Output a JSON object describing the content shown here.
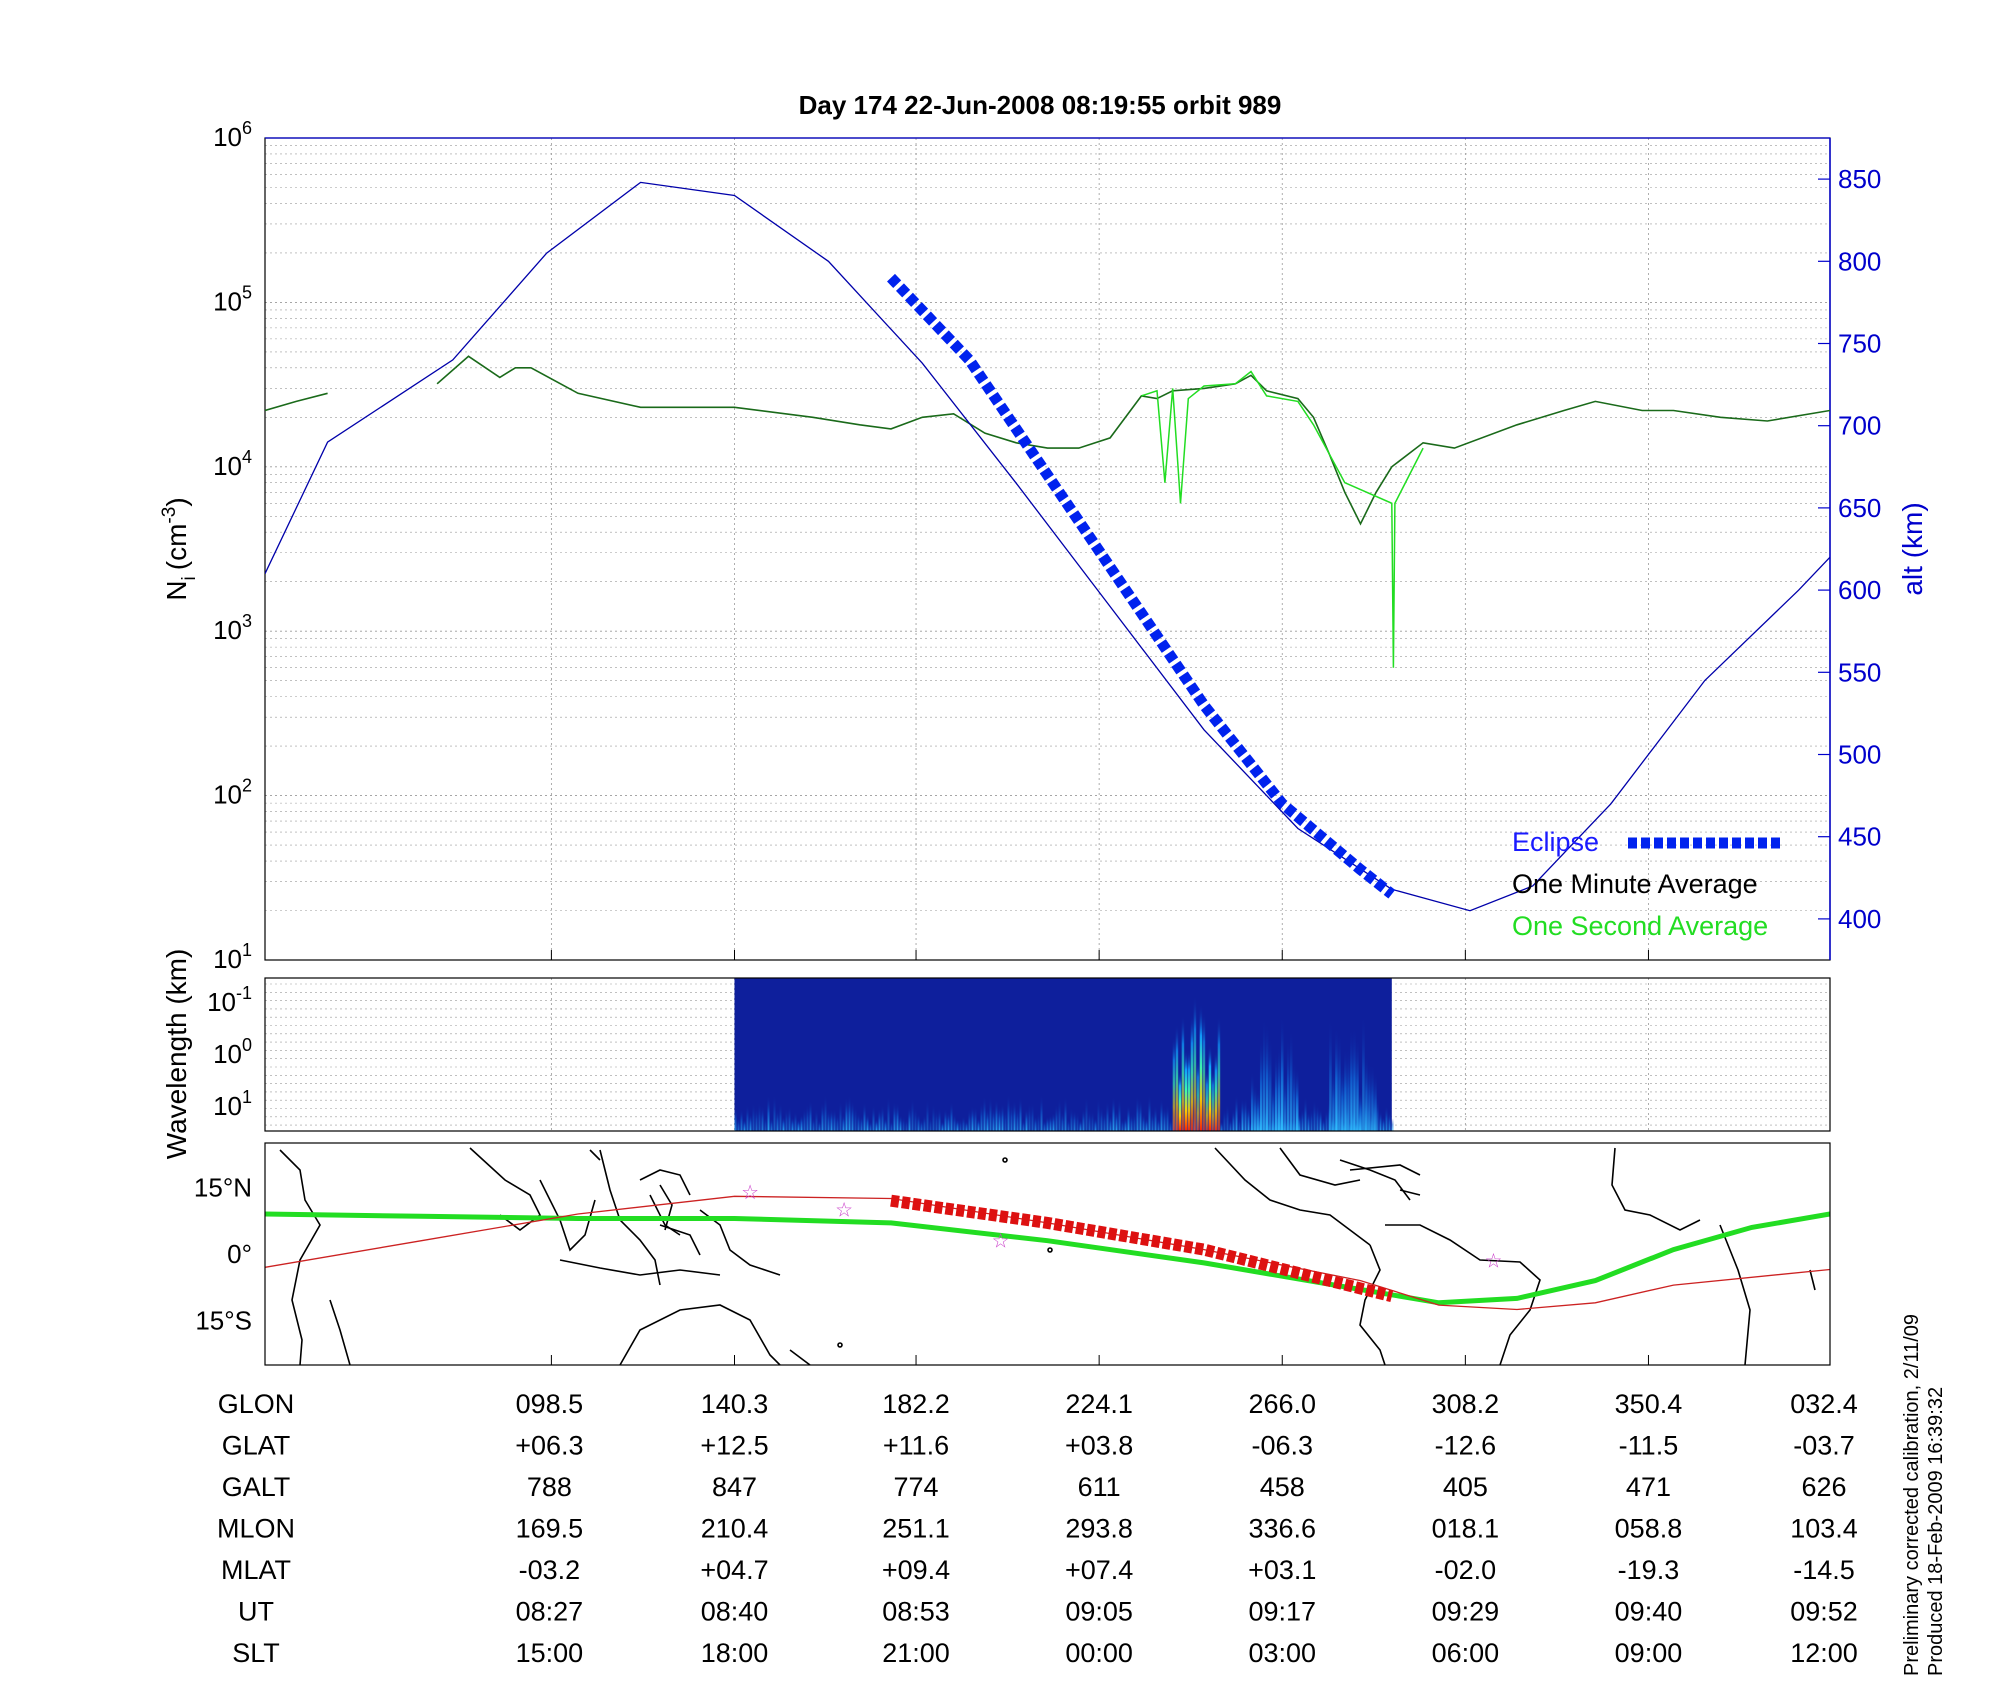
{
  "title": "Day 174  22-Jun-2008 08:19:55   orbit 989",
  "footnote": {
    "line1": "Preliminary corrected calibration, 2/11/09",
    "line2": "Produced 18-Feb-2009 16:39:32"
  },
  "colors": {
    "altitude": "#0000aa",
    "eclipse": "#0022ee",
    "one_minute": "#000000",
    "one_second": "#22dd22",
    "track": "#cc2222",
    "map_eclipse": "#dd1111",
    "stars": "#cc44cc"
  },
  "chart_data": [
    {
      "type": "line",
      "panel": "density",
      "title": "",
      "ylabel_main": "N",
      "ylabel_sub": "i",
      "ylabel_unit": "(cm",
      "ylabel_exp": "-3",
      "ylabel_close": ")",
      "yscale": "log",
      "ylim": [
        10,
        1000000
      ],
      "yticks": [
        {
          "base": "10",
          "exp": "1",
          "value": 10
        },
        {
          "base": "10",
          "exp": "2",
          "value": 100
        },
        {
          "base": "10",
          "exp": "3",
          "value": 1000
        },
        {
          "base": "10",
          "exp": "4",
          "value": 10000
        },
        {
          "base": "10",
          "exp": "5",
          "value": 100000
        },
        {
          "base": "10",
          "exp": "6",
          "value": 1000000
        }
      ],
      "y2label": "alt (km)",
      "y2lim": [
        375,
        875
      ],
      "y2ticks": [
        "400",
        "450",
        "500",
        "550",
        "600",
        "650",
        "700",
        "750",
        "800",
        "850"
      ],
      "xlim": [
        0,
        1
      ],
      "legend": {
        "placement": "bottom-right",
        "entries": [
          {
            "name": "Eclipse",
            "style": "thick-dashed"
          },
          {
            "name": "One Minute Average",
            "style": "line"
          },
          {
            "name": "One Second Average",
            "style": "line"
          }
        ]
      },
      "series": [
        {
          "name": "One Minute Average",
          "x": [
            0,
            0.02,
            0.04,
            0.04,
            0.11,
            0.13,
            0.15,
            0.16,
            0.17,
            0.2,
            0.24,
            0.3,
            0.35,
            0.38,
            0.4,
            0.42,
            0.44,
            0.46,
            0.48,
            0.5,
            0.52,
            0.54,
            0.56,
            0.57,
            0.58,
            0.6,
            0.62,
            0.63,
            0.64,
            0.66,
            0.67,
            0.68,
            0.69,
            0.7,
            0.71,
            0.72,
            0.74,
            0.76,
            0.8,
            0.83,
            0.85,
            0.88,
            0.9,
            0.93,
            0.96,
            1.0
          ],
          "y": [
            22000,
            25000,
            28000,
            null,
            32000,
            47000,
            35000,
            40000,
            40000,
            28000,
            23000,
            23000,
            20000,
            18000,
            17000,
            20000,
            21000,
            16000,
            14000,
            13000,
            13000,
            15000,
            27000,
            26000,
            29000,
            30000,
            32000,
            36000,
            29000,
            26000,
            20000,
            12000,
            7000,
            4500,
            7000,
            10000,
            14000,
            13000,
            18000,
            22000,
            25000,
            22000,
            22000,
            20000,
            19000,
            22000
          ]
        },
        {
          "name": "One Second Average",
          "x": [
            0.56,
            0.57,
            0.575,
            0.58,
            0.585,
            0.59,
            0.6,
            0.62,
            0.63,
            0.64,
            0.66,
            0.67,
            0.69,
            0.72,
            0.721,
            0.722,
            0.74
          ],
          "y": [
            27000,
            29000,
            8000,
            30000,
            6000,
            26000,
            31000,
            32000,
            38000,
            27000,
            25000,
            18000,
            8000,
            6000,
            600,
            6000,
            13000
          ]
        },
        {
          "name": "Altitude",
          "axis": "y2",
          "x": [
            0,
            0.04,
            0.12,
            0.18,
            0.24,
            0.3,
            0.36,
            0.42,
            0.48,
            0.54,
            0.6,
            0.66,
            0.72,
            0.77,
            0.81,
            0.86,
            0.92,
            0.98,
            1.0
          ],
          "y": [
            610,
            690,
            740,
            805,
            848,
            840,
            800,
            738,
            665,
            590,
            515,
            455,
            418,
            405,
            420,
            470,
            545,
            600,
            620
          ]
        },
        {
          "name": "Eclipse",
          "axis": "y2",
          "x": [
            0.4,
            0.45,
            0.5,
            0.55,
            0.6,
            0.65,
            0.7,
            0.72
          ],
          "y": [
            790,
            740,
            670,
            600,
            530,
            470,
            430,
            415
          ]
        }
      ]
    },
    {
      "type": "heatmap",
      "panel": "spectrogram",
      "title": "",
      "ylabel": "Wavelength (km)",
      "yticks": [
        {
          "base": "10",
          "exp": "-1"
        },
        {
          "base": "10",
          "exp": "0"
        },
        {
          "base": "10",
          "exp": "1"
        }
      ],
      "data_xrange": [
        0.3,
        0.72
      ],
      "colormap": "jet",
      "features": [
        {
          "x": [
            0.58,
            0.61
          ],
          "intensity": "high"
        },
        {
          "x": [
            0.63,
            0.66
          ],
          "intensity": "medium"
        },
        {
          "x": [
            0.68,
            0.71
          ],
          "intensity": "medium"
        }
      ]
    },
    {
      "type": "map",
      "panel": "ground-track",
      "title": "",
      "yticks": [
        "15°N",
        "0°",
        "15°S"
      ],
      "ylim": [
        -25,
        25
      ],
      "series": [
        {
          "name": "Magnetic equator",
          "x": [
            0,
            0.1,
            0.2,
            0.3,
            0.4,
            0.5,
            0.6,
            0.7,
            0.75,
            0.8,
            0.85,
            0.9,
            0.95,
            1.0
          ],
          "y": [
            9,
            8.5,
            8,
            8,
            7,
            3,
            -2,
            -8,
            -11,
            -10,
            -6,
            1,
            6,
            9
          ]
        },
        {
          "name": "Orbit track",
          "x": [
            0,
            0.1,
            0.2,
            0.3,
            0.4,
            0.5,
            0.6,
            0.7,
            0.75,
            0.8,
            0.85,
            0.9,
            1.0
          ],
          "y": [
            -3,
            3,
            9,
            13,
            12.5,
            7,
            1,
            -6,
            -11.5,
            -12.5,
            -11,
            -7,
            -3.5
          ]
        },
        {
          "name": "Eclipse",
          "x": [
            0.4,
            0.5,
            0.6,
            0.72
          ],
          "y": [
            12,
            7,
            1,
            -9.5
          ]
        }
      ],
      "stars": [
        {
          "x": 0.31,
          "y": 14
        },
        {
          "x": 0.37,
          "y": 10
        },
        {
          "x": 0.47,
          "y": 3
        },
        {
          "x": 0.785,
          "y": -1.5
        }
      ]
    }
  ],
  "ephemeris": {
    "rows": [
      {
        "label": "GLON",
        "values": [
          "098.5",
          "140.3",
          "182.2",
          "224.1",
          "266.0",
          "308.2",
          "350.4",
          "032.4"
        ]
      },
      {
        "label": "GLAT",
        "values": [
          "+06.3",
          "+12.5",
          "+11.6",
          "+03.8",
          "-06.3",
          "-12.6",
          "-11.5",
          "-03.7"
        ]
      },
      {
        "label": "GALT",
        "values": [
          "788",
          "847",
          "774",
          "611",
          "458",
          "405",
          "471",
          "626"
        ]
      },
      {
        "label": "MLON",
        "values": [
          "169.5",
          "210.4",
          "251.1",
          "293.8",
          "336.6",
          "018.1",
          "058.8",
          "103.4"
        ]
      },
      {
        "label": "MLAT",
        "values": [
          "-03.2",
          "+04.7",
          "+09.4",
          "+07.4",
          "+03.1",
          "-02.0",
          "-19.3",
          "-14.5"
        ]
      },
      {
        "label": "UT",
        "values": [
          "08:27",
          "08:40",
          "08:53",
          "09:05",
          "09:17",
          "09:29",
          "09:40",
          "09:52"
        ]
      },
      {
        "label": "SLT",
        "values": [
          "15:00",
          "18:00",
          "21:00",
          "00:00",
          "03:00",
          "06:00",
          "09:00",
          "12:00"
        ]
      }
    ]
  }
}
